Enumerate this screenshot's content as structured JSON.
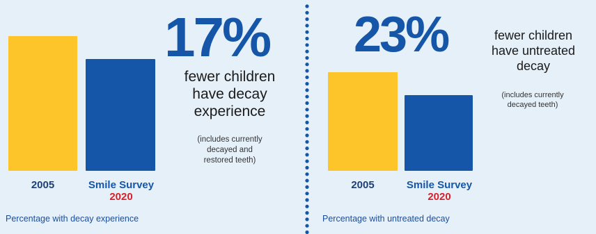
{
  "colors": {
    "background": "#e6f0f9",
    "bar_2005": "#fdc52a",
    "bar_2020": "#1556a8",
    "label_2005": "#1d3f78",
    "label_survey": "#1556a8",
    "label_year_red": "#d81f2a",
    "divider_dots": "#1556a8"
  },
  "left": {
    "percent": "17%",
    "headline_lines": [
      "fewer children",
      "have decay",
      "experience"
    ],
    "note_lines": [
      "(includes currently",
      "decayed and",
      "restored teeth)"
    ],
    "cat_2005": "2005",
    "cat_survey": "Smile Survey",
    "cat_year": "2020",
    "caption": "Percentage with decay experience"
  },
  "right": {
    "percent": "23%",
    "headline_lines": [
      "fewer children",
      "have untreated",
      "decay"
    ],
    "note_lines": [
      "(includes currently",
      "decayed teeth)"
    ],
    "cat_2005": "2005",
    "cat_survey": "Smile Survey",
    "cat_year": "2020",
    "caption": "Percentage with untreated decay"
  },
  "chart_data": [
    {
      "type": "bar",
      "categories": [
        "2005",
        "Smile Survey 2020"
      ],
      "values": [
        1.0,
        0.83
      ],
      "title": "Percentage with decay experience",
      "annotation": "17% fewer children have decay experience"
    },
    {
      "type": "bar",
      "categories": [
        "2005",
        "Smile Survey 2020"
      ],
      "values": [
        1.0,
        0.77
      ],
      "title": "Percentage with untreated decay",
      "annotation": "23% fewer children have untreated decay"
    }
  ]
}
